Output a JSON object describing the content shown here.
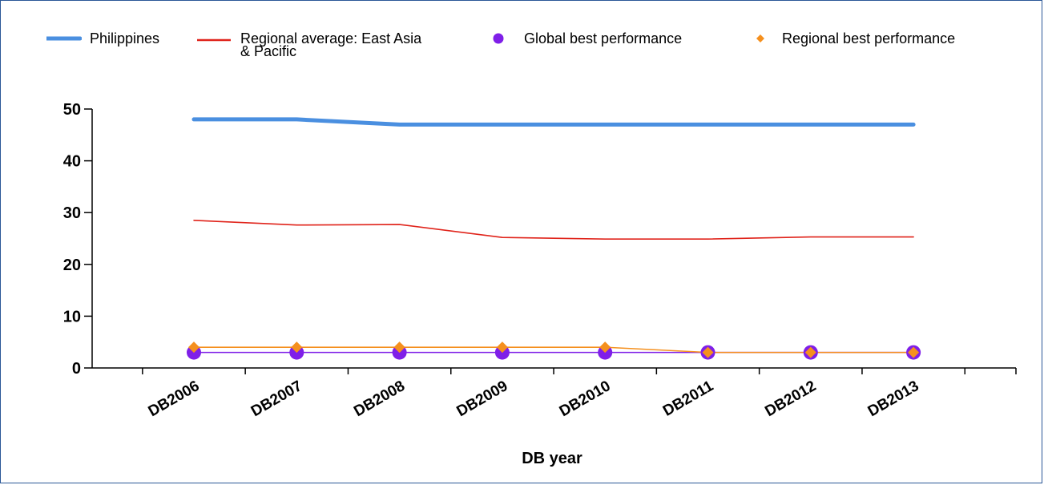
{
  "legend": {
    "items": [
      {
        "label": "Philippines",
        "type": "line",
        "color": "#4a8fe0"
      },
      {
        "label": "Regional average: East Asia\n& Pacific",
        "type": "line",
        "color": "#e0241b"
      },
      {
        "label": "Global best performance",
        "type": "marker-circle",
        "color": "#7f1fe8"
      },
      {
        "label": "Regional best performance",
        "type": "marker-diamond",
        "color": "#f5901e"
      }
    ]
  },
  "chart_data": {
    "type": "line",
    "categories": [
      "DB2006",
      "DB2007",
      "DB2008",
      "DB2009",
      "DB2010",
      "DB2011",
      "DB2012",
      "DB2013"
    ],
    "series": [
      {
        "name": "Philippines",
        "color": "#4a8fe0",
        "style": "line",
        "values": [
          48,
          48,
          47,
          47,
          47,
          47,
          47,
          47
        ]
      },
      {
        "name": "Regional average: East Asia & Pacific",
        "color": "#e0241b",
        "style": "line",
        "values": [
          28.5,
          27.6,
          27.7,
          25.2,
          24.9,
          24.9,
          25.3,
          25.3
        ]
      },
      {
        "name": "Global best performance",
        "color": "#7f1fe8",
        "style": "line-circle",
        "values": [
          3,
          3,
          3,
          3,
          3,
          3,
          3,
          3
        ]
      },
      {
        "name": "Regional best performance",
        "color": "#f5901e",
        "style": "line-diamond",
        "values": [
          4,
          4,
          4,
          4,
          4,
          3,
          3,
          3
        ]
      }
    ],
    "xlabel": "DB year",
    "ylabel": "",
    "ylim": [
      0,
      50
    ],
    "yticks": [
      0,
      10,
      20,
      30,
      40,
      50
    ],
    "grid": false,
    "legend_position": "top"
  }
}
